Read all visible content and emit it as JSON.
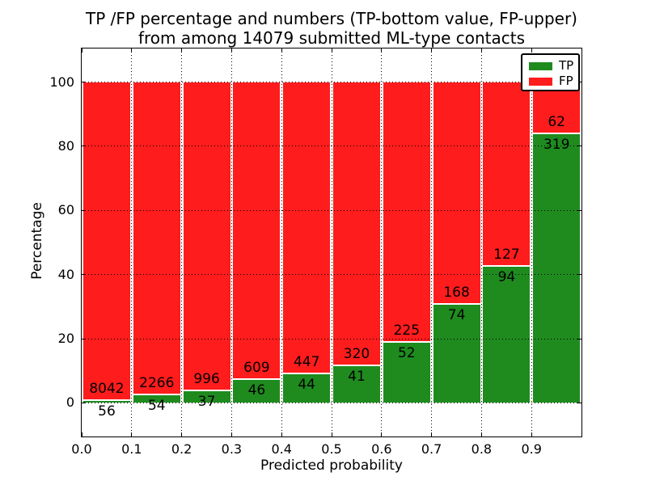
{
  "title": {
    "line1": "TP /FP percentage and numbers (TP-bottom value, FP-upper)",
    "line2": "from among 14079 submitted ML-type contacts"
  },
  "chart_data": {
    "type": "bar",
    "stacked": true,
    "title": "TP /FP percentage and numbers (TP-bottom value, FP-upper) from among 14079 submitted ML-type contacts",
    "xlabel": "Predicted probability",
    "ylabel": "Percentage",
    "total_contacts": 14079,
    "bin_start": [
      0.0,
      0.1,
      0.2,
      0.3,
      0.4,
      0.5,
      0.6,
      0.7,
      0.8,
      0.9
    ],
    "bin_width": 0.1,
    "series": [
      {
        "name": "TP",
        "color": "#1f8b1f",
        "counts": [
          56,
          54,
          37,
          46,
          44,
          41,
          52,
          74,
          94,
          319
        ]
      },
      {
        "name": "FP",
        "color": "#ff1c1c",
        "counts": [
          8042,
          2266,
          996,
          609,
          447,
          320,
          225,
          168,
          127,
          62
        ]
      }
    ],
    "values_are": "percent of each bin, stacked to 100; numeric labels show raw counts (TP below boundary, FP above boundary)",
    "xticks": [
      "0.0",
      "0.1",
      "0.2",
      "0.3",
      "0.4",
      "0.5",
      "0.6",
      "0.7",
      "0.8",
      "0.9"
    ],
    "yticks": [
      0,
      20,
      40,
      60,
      80,
      100
    ],
    "xlim": [
      0.0,
      1.0
    ],
    "ylim": [
      -10.5,
      110.5
    ],
    "grid": "dotted black, drawn above bars",
    "legend": {
      "position": "upper right",
      "entries": [
        "TP",
        "FP"
      ]
    }
  }
}
